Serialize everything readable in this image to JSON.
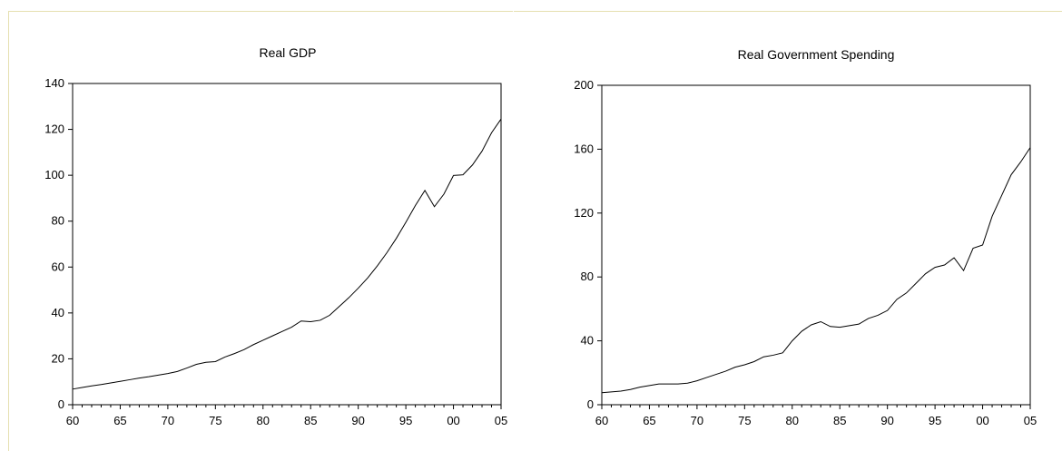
{
  "chart_data": [
    {
      "type": "line",
      "title": "Real GDP",
      "xlabel": "",
      "ylabel": "",
      "xlim": [
        1960,
        2005
      ],
      "ylim": [
        0,
        140
      ],
      "xticks": [
        1960,
        1965,
        1970,
        1975,
        1980,
        1985,
        1990,
        1995,
        2000,
        2005
      ],
      "xtick_labels": [
        "60",
        "65",
        "70",
        "75",
        "80",
        "85",
        "90",
        "95",
        "00",
        "05"
      ],
      "yticks": [
        0,
        20,
        40,
        60,
        80,
        100,
        120,
        140
      ],
      "ytick_labels": [
        "0",
        "20",
        "40",
        "60",
        "80",
        "100",
        "120",
        "140"
      ],
      "grid": false,
      "series": [
        {
          "x": [
            1960,
            1961,
            1962,
            1963,
            1964,
            1965,
            1966,
            1967,
            1968,
            1969,
            1970,
            1971,
            1972,
            1973,
            1974,
            1975,
            1976,
            1977,
            1978,
            1979,
            1980,
            1981,
            1982,
            1983,
            1984,
            1985,
            1986,
            1987,
            1988,
            1989,
            1990,
            1991,
            1992,
            1993,
            1994,
            1995,
            1996,
            1997,
            1998,
            1999,
            2000,
            2001,
            2002,
            2003,
            2004,
            2005
          ],
          "values": [
            6.8,
            7.5,
            8.2,
            8.8,
            9.5,
            10.2,
            10.9,
            11.6,
            12.2,
            12.9,
            13.6,
            14.5,
            16.0,
            17.6,
            18.5,
            18.8,
            20.8,
            22.3,
            24.0,
            26.2,
            28.1,
            30.0,
            31.9,
            33.8,
            36.5,
            36.2,
            36.8,
            39.0,
            42.8,
            46.6,
            50.8,
            55.3,
            60.5,
            66.2,
            72.5,
            79.5,
            86.8,
            93.4,
            86.3,
            91.8,
            99.9,
            100.2,
            104.5,
            110.5,
            118.5,
            124.5
          ]
        }
      ]
    },
    {
      "type": "line",
      "title": "Real Government Spending",
      "xlabel": "",
      "ylabel": "",
      "xlim": [
        1960,
        2005
      ],
      "ylim": [
        0,
        200
      ],
      "xticks": [
        1960,
        1965,
        1970,
        1975,
        1980,
        1985,
        1990,
        1995,
        2000,
        2005
      ],
      "xtick_labels": [
        "60",
        "65",
        "70",
        "75",
        "80",
        "85",
        "90",
        "95",
        "00",
        "05"
      ],
      "yticks": [
        0,
        40,
        80,
        120,
        160,
        200
      ],
      "ytick_labels": [
        "0",
        "40",
        "80",
        "120",
        "160",
        "200"
      ],
      "grid": false,
      "series": [
        {
          "x": [
            1960,
            1961,
            1962,
            1963,
            1964,
            1965,
            1966,
            1967,
            1968,
            1969,
            1970,
            1971,
            1972,
            1973,
            1974,
            1975,
            1976,
            1977,
            1978,
            1979,
            1980,
            1981,
            1982,
            1983,
            1984,
            1985,
            1986,
            1987,
            1988,
            1989,
            1990,
            1991,
            1992,
            1993,
            1994,
            1995,
            1996,
            1997,
            1998,
            1999,
            2000,
            2001,
            2002,
            2003,
            2004,
            2005
          ],
          "values": [
            7.5,
            8.0,
            8.5,
            9.5,
            11.0,
            12.0,
            13.0,
            13.0,
            13.0,
            13.5,
            15.0,
            17.0,
            19.0,
            21.0,
            23.5,
            25.0,
            27.0,
            30.0,
            31.0,
            32.5,
            40.0,
            46.0,
            50.0,
            52.0,
            49.0,
            48.5,
            49.5,
            50.5,
            54.0,
            56.0,
            59.0,
            66.0,
            70.0,
            76.0,
            82.0,
            86.0,
            87.5,
            92.0,
            84.0,
            98.0,
            100.0,
            118.0,
            131.0,
            144.0,
            152.0,
            161.0
          ]
        }
      ]
    }
  ]
}
